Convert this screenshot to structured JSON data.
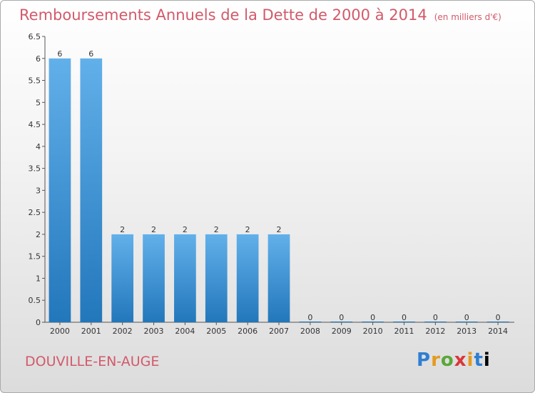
{
  "header": {
    "title": "Remboursements Annuels de la Dette de 2000 à 2014",
    "unit": "(en milliers d'€)"
  },
  "footer": {
    "commune": "DOUVILLE-EN-AUGE",
    "logo_letters": [
      "P",
      "r",
      "o",
      "x",
      "i",
      "t",
      "i"
    ]
  },
  "colors": {
    "title": "#d25a6a",
    "bar_light": "#62b0ea",
    "bar_dark": "#2277bb"
  },
  "chart_data": {
    "type": "bar",
    "title": "Remboursements Annuels de la Dette de 2000 à 2014",
    "xlabel": "",
    "ylabel": "",
    "categories": [
      "2000",
      "2001",
      "2002",
      "2003",
      "2004",
      "2005",
      "2006",
      "2007",
      "2008",
      "2009",
      "2010",
      "2011",
      "2012",
      "2013",
      "2014"
    ],
    "values": [
      6,
      6,
      2,
      2,
      2,
      2,
      2,
      2,
      0,
      0,
      0,
      0,
      0,
      0,
      0
    ],
    "data_labels": [
      "6",
      "6",
      "2",
      "2",
      "2",
      "2",
      "2",
      "2",
      "0",
      "0",
      "0",
      "0",
      "0",
      "0",
      "0"
    ],
    "yticks": [
      "0",
      "0.5",
      "1",
      "1.5",
      "2",
      "2.5",
      "3",
      "3.5",
      "4",
      "4.5",
      "5",
      "5.5",
      "6",
      "6.5"
    ],
    "ylim": [
      0,
      6.5
    ],
    "grid": false,
    "legend": "none"
  }
}
